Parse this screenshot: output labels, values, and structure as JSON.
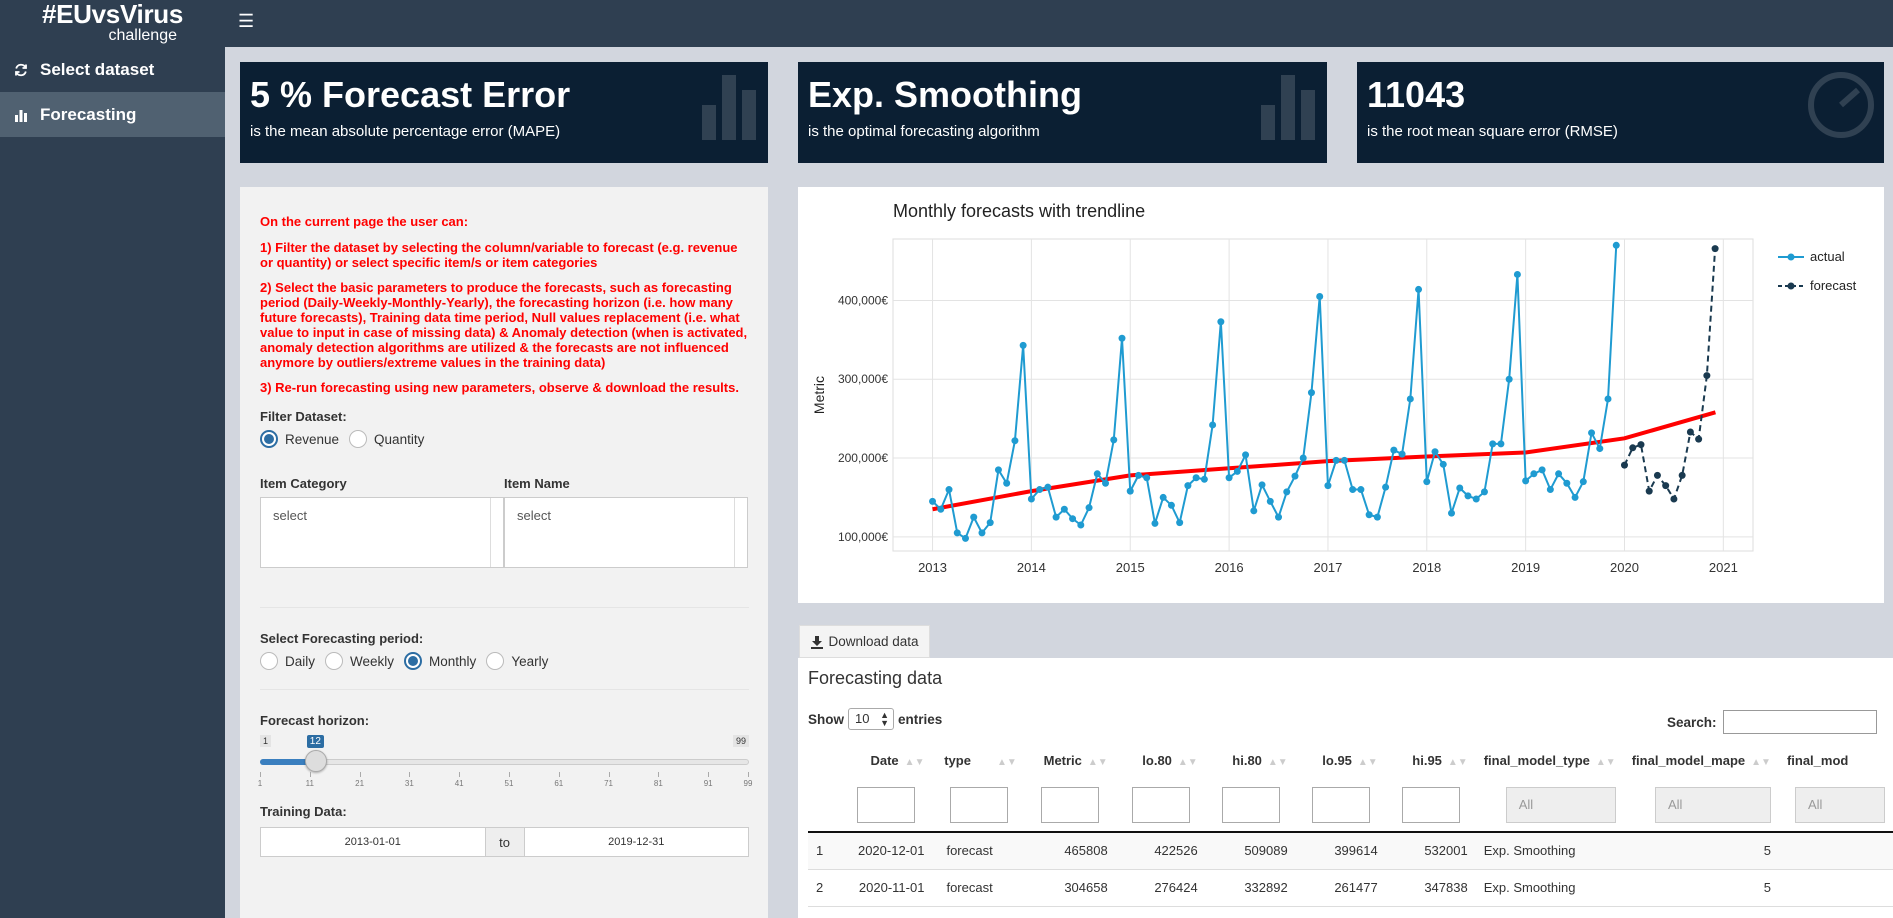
{
  "logo": {
    "line1": "#EUvsVirus",
    "line2": "challenge"
  },
  "sidebar": {
    "items": [
      {
        "label": "Select dataset",
        "icon": "refresh-icon"
      },
      {
        "label": "Forecasting",
        "icon": "bar-chart-icon"
      }
    ]
  },
  "value_boxes": [
    {
      "value": "5 % Forecast Error",
      "subtitle": "is the mean absolute percentage error (MAPE)"
    },
    {
      "value": "Exp. Smoothing",
      "subtitle": "is the optimal forecasting algorithm"
    },
    {
      "value": "11043",
      "subtitle": "is the root mean square error (RMSE)"
    }
  ],
  "instructions": [
    "On the current page the user can:",
    "1) Filter the dataset by selecting the column/variable to forecast (e.g. revenue or quantity) or select specific item/s or item categories",
    "2) Select the basic parameters to produce the forecasts, such as forecasting period (Daily-Weekly-Monthly-Yearly), the forecasting horizon (i.e. how many future forecasts), Training data time period, Null values replacement (i.e. what value to input in case of missing data) & Anomaly detection (when is activated, anomaly detection algorithms are utilized & the forecasts are not influenced anymore by outliers/extreme values in the training data)",
    "3) Re-run forecasting using new parameters, observe & download the results."
  ],
  "filter": {
    "label": "Filter Dataset:",
    "options": [
      "Revenue",
      "Quantity"
    ],
    "selected": "Revenue"
  },
  "item_category": {
    "label": "Item Category",
    "placeholder": "select"
  },
  "item_name": {
    "label": "Item Name",
    "placeholder": "select"
  },
  "period": {
    "label": "Select Forecasting period:",
    "options": [
      "Daily",
      "Weekly",
      "Monthly",
      "Yearly"
    ],
    "selected": "Monthly"
  },
  "horizon": {
    "label": "Forecast horizon:",
    "min": "1",
    "max": "99",
    "value": 12,
    "value_label": "12",
    "ticks": [
      "1",
      "11",
      "21",
      "31",
      "41",
      "51",
      "61",
      "71",
      "81",
      "91",
      "99"
    ]
  },
  "training": {
    "label": "Training Data:",
    "from": "2013-01-01",
    "to_label": "to",
    "to": "2019-12-31"
  },
  "colors": {
    "sidebar": "#2f3f51",
    "value_box": "#0b1f33",
    "actual": "#1f9bd1",
    "forecast": "#1a3a50",
    "trend": "#ff0000",
    "instructions": "#ff0000"
  },
  "chart_data": {
    "type": "line",
    "title": "Monthly forecasts with trendline",
    "ylabel": "Metric",
    "xlabel": "",
    "xlim": [
      2012.6,
      2021.3
    ],
    "ylim": [
      82000,
      478000
    ],
    "x_ticks": [
      "2013",
      "2014",
      "2015",
      "2016",
      "2017",
      "2018",
      "2019",
      "2020",
      "2021"
    ],
    "y_ticks": [
      "100,000€",
      "200,000€",
      "300,000€",
      "400,000€"
    ],
    "y_tick_values": [
      100000,
      200000,
      300000,
      400000
    ],
    "legend": "top-right",
    "grid": true,
    "series": [
      {
        "name": "actual",
        "start": "2013-01",
        "values": [
          145000,
          135000,
          160000,
          105000,
          98000,
          125000,
          105000,
          118000,
          185000,
          168000,
          222000,
          343000,
          148000,
          160000,
          163000,
          125000,
          135000,
          123000,
          115000,
          137000,
          180000,
          168000,
          223000,
          352000,
          158000,
          178000,
          175000,
          117000,
          150000,
          140000,
          118000,
          165000,
          175000,
          173000,
          242000,
          373000,
          175000,
          183000,
          204000,
          133000,
          166000,
          145000,
          125000,
          157000,
          177000,
          200000,
          283000,
          405000,
          165000,
          197000,
          197000,
          160000,
          160000,
          128000,
          125000,
          163000,
          210000,
          205000,
          275000,
          414000,
          170000,
          208000,
          192000,
          130000,
          162000,
          152000,
          148000,
          157000,
          218000,
          218000,
          300000,
          433000,
          171000,
          180000,
          185000,
          160000,
          180000,
          168000,
          150000,
          170000,
          232000,
          212000,
          275000,
          470000
        ]
      },
      {
        "name": "forecast",
        "start": "2020-01",
        "values": [
          191000,
          213000,
          217000,
          158000,
          178000,
          165000,
          148000,
          178000,
          233000,
          224000,
          304658,
          465808
        ]
      },
      {
        "name": "trendline",
        "x": [
          2013.0,
          2014.0,
          2015.0,
          2016.0,
          2017.0,
          2018.0,
          2019.0,
          2020.0,
          2020.92
        ],
        "values": [
          135000,
          158000,
          178000,
          187000,
          196000,
          202000,
          207000,
          225000,
          258000
        ]
      }
    ]
  },
  "download_label": "Download data",
  "table": {
    "title": "Forecasting data",
    "show_label": "Show",
    "entries_value": "10",
    "entries_label": "entries",
    "search_label": "Search:",
    "columns": [
      "Date",
      "type",
      "Metric",
      "lo.80",
      "hi.80",
      "lo.95",
      "hi.95",
      "final_model_type",
      "final_model_mape",
      "final_mod"
    ],
    "filter_all": "All",
    "rows": [
      [
        "1",
        "2020-12-01",
        "forecast",
        "465808",
        "422526",
        "509089",
        "399614",
        "532001",
        "Exp. Smoothing",
        "5"
      ],
      [
        "2",
        "2020-11-01",
        "forecast",
        "304658",
        "276424",
        "332892",
        "261477",
        "347838",
        "Exp. Smoothing",
        "5"
      ]
    ]
  }
}
